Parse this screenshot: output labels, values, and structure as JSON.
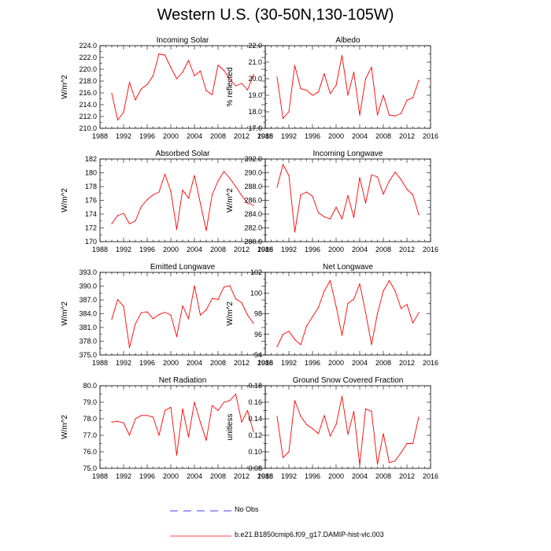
{
  "figure": {
    "title": "Western U.S. (30-50N,130-105W)",
    "line_color": "#ff0000",
    "obs_color": "#0000ff"
  },
  "legend": [
    {
      "label": "No Obs",
      "style": "dashed",
      "color": "#0000ff"
    },
    {
      "label": "b.e21.B1850cmip6.f09_g17.DAMIP-hist-vlc.003",
      "style": "solid",
      "color": "#ff0000"
    }
  ],
  "chart_data": [
    {
      "type": "line",
      "title": "Incoming Solar",
      "ylabel": "W/m^2",
      "xlim": [
        1988,
        2016
      ],
      "xticks": [
        1988,
        1992,
        1996,
        2000,
        2004,
        2008,
        2012,
        2016
      ],
      "ylim": [
        210,
        224
      ],
      "yticks": [
        "210.0",
        "212.0",
        "214.0",
        "216.0",
        "218.0",
        "220.0",
        "222.0",
        "224.0"
      ],
      "x": [
        1990,
        1991,
        1992,
        1993,
        1994,
        1995,
        1996,
        1997,
        1998,
        1999,
        2000,
        2001,
        2002,
        2003,
        2004,
        2005,
        2006,
        2007,
        2008,
        2009,
        2010,
        2011,
        2012,
        2013,
        2014
      ],
      "series": [
        {
          "name": "b.e21.B1850cmip6.f09_g17.DAMIP-hist-vlc.003",
          "values": [
            215.9,
            211.4,
            212.7,
            217.8,
            214.8,
            216.7,
            217.4,
            218.9,
            222.6,
            222.4,
            220.3,
            218.4,
            219.5,
            221.5,
            218.9,
            219.7,
            216.4,
            215.7,
            220.7,
            219.8,
            218.3,
            217.2,
            217.6,
            216.5,
            219.1
          ]
        }
      ]
    },
    {
      "type": "line",
      "title": "Albedo",
      "ylabel": "% reflected",
      "xlim": [
        1988,
        2016
      ],
      "xticks": [
        1988,
        1992,
        1996,
        2000,
        2004,
        2008,
        2012,
        2016
      ],
      "ylim": [
        17,
        22
      ],
      "yticks": [
        "17.0",
        "18.0",
        "19.0",
        "20.0",
        "21.0",
        "22.0"
      ],
      "x": [
        1990,
        1991,
        1992,
        1993,
        1994,
        1995,
        1996,
        1997,
        1998,
        1999,
        2000,
        2001,
        2002,
        2003,
        2004,
        2005,
        2006,
        2007,
        2008,
        2009,
        2010,
        2011,
        2012,
        2013,
        2014
      ],
      "series": [
        {
          "name": "b.e21.B1850cmip6.f09_g17.DAMIP-hist-vlc.003",
          "values": [
            20.1,
            17.6,
            18.0,
            20.8,
            19.4,
            19.3,
            19.0,
            19.2,
            20.3,
            19.1,
            19.6,
            21.4,
            19.0,
            20.4,
            17.8,
            20.0,
            20.7,
            17.8,
            19.0,
            17.8,
            17.75,
            17.9,
            18.7,
            18.85,
            19.9
          ]
        }
      ]
    },
    {
      "type": "line",
      "title": "Absorbed Solar",
      "ylabel": "W/m^2",
      "xlim": [
        1988,
        2016
      ],
      "xticks": [
        1988,
        1992,
        1996,
        2000,
        2004,
        2008,
        2012,
        2016
      ],
      "ylim": [
        170,
        182
      ],
      "yticks": [
        "170",
        "172",
        "174",
        "176",
        "178",
        "180",
        "182"
      ],
      "x": [
        1990,
        1991,
        1992,
        1993,
        1994,
        1995,
        1996,
        1997,
        1998,
        1999,
        2000,
        2001,
        2002,
        2003,
        2004,
        2005,
        2006,
        2007,
        2008,
        2009,
        2010,
        2011,
        2012,
        2013,
        2014
      ],
      "series": [
        {
          "name": "b.e21.B1850cmip6.f09_g17.DAMIP-hist-vlc.003",
          "values": [
            172.6,
            173.8,
            174.1,
            172.6,
            173.0,
            175.1,
            176.1,
            176.8,
            177.2,
            179.8,
            177.3,
            171.8,
            177.5,
            176.3,
            179.6,
            175.6,
            171.6,
            176.8,
            178.8,
            180.2,
            179.2,
            178.0,
            176.7,
            175.6,
            175.3
          ]
        }
      ]
    },
    {
      "type": "line",
      "title": "Incoming Longwave",
      "ylabel": "W/m^2",
      "xlim": [
        1988,
        2016
      ],
      "xticks": [
        1988,
        1992,
        1996,
        2000,
        2004,
        2008,
        2012,
        2016
      ],
      "ylim": [
        280,
        292
      ],
      "yticks": [
        "280.0",
        "282.0",
        "284.0",
        "286.0",
        "288.0",
        "290.0",
        "292.0"
      ],
      "x": [
        1990,
        1991,
        1992,
        1993,
        1994,
        1995,
        1996,
        1997,
        1998,
        1999,
        2000,
        2001,
        2002,
        2003,
        2004,
        2005,
        2006,
        2007,
        2008,
        2009,
        2010,
        2011,
        2012,
        2013,
        2014
      ],
      "series": [
        {
          "name": "b.e21.B1850cmip6.f09_g17.DAMIP-hist-vlc.003",
          "values": [
            287.9,
            291.2,
            289.6,
            281.4,
            286.8,
            287.2,
            286.6,
            284.2,
            283.6,
            283.3,
            285.0,
            283.3,
            286.7,
            283.5,
            289.3,
            285.6,
            289.7,
            289.4,
            286.9,
            288.8,
            290.1,
            289.0,
            287.6,
            286.8,
            283.9
          ]
        }
      ]
    },
    {
      "type": "line",
      "title": "Emitted Longwave",
      "ylabel": "W/m^2",
      "xlim": [
        1988,
        2016
      ],
      "xticks": [
        1988,
        1992,
        1996,
        2000,
        2004,
        2008,
        2012,
        2016
      ],
      "ylim": [
        375,
        393
      ],
      "yticks": [
        "375.0",
        "378.0",
        "381.0",
        "384.0",
        "387.0",
        "390.0",
        "393.0"
      ],
      "x": [
        1990,
        1991,
        1992,
        1993,
        1994,
        1995,
        1996,
        1997,
        1998,
        1999,
        2000,
        2001,
        2002,
        2003,
        2004,
        2005,
        2006,
        2007,
        2008,
        2009,
        2010,
        2011,
        2012,
        2013,
        2014
      ],
      "series": [
        {
          "name": "b.e21.B1850cmip6.f09_g17.DAMIP-hist-vlc.003",
          "values": [
            382.8,
            387.1,
            385.6,
            376.6,
            381.8,
            384.2,
            384.4,
            382.9,
            383.8,
            384.3,
            383.7,
            379.0,
            385.7,
            382.9,
            390.1,
            383.7,
            384.8,
            387.3,
            387.1,
            389.8,
            390.1,
            387.2,
            386.4,
            383.7,
            381.9
          ]
        }
      ]
    },
    {
      "type": "line",
      "title": "Net Longwave",
      "ylabel": "W/m^2",
      "xlim": [
        1988,
        2016
      ],
      "xticks": [
        1988,
        1992,
        1996,
        2000,
        2004,
        2008,
        2012,
        2016
      ],
      "ylim": [
        94,
        102
      ],
      "yticks": [
        "94",
        "96",
        "98",
        "100",
        "102"
      ],
      "x": [
        1990,
        1991,
        1992,
        1993,
        1994,
        1995,
        1996,
        1997,
        1998,
        1999,
        2000,
        2001,
        2002,
        2003,
        2004,
        2005,
        2006,
        2007,
        2008,
        2009,
        2010,
        2011,
        2012,
        2013,
        2014
      ],
      "series": [
        {
          "name": "b.e21.B1850cmip6.f09_g17.DAMIP-hist-vlc.003",
          "values": [
            94.8,
            96.0,
            96.3,
            95.5,
            95.0,
            96.8,
            97.7,
            98.6,
            100.2,
            101.2,
            98.7,
            95.9,
            99.0,
            99.4,
            100.9,
            98.1,
            95.0,
            98.0,
            100.2,
            101.2,
            100.2,
            98.5,
            98.9,
            97.1,
            98.1
          ]
        }
      ]
    },
    {
      "type": "line",
      "title": "Net Radiation",
      "ylabel": "W/m^2",
      "xlim": [
        1988,
        2016
      ],
      "xticks": [
        1988,
        1992,
        1996,
        2000,
        2004,
        2008,
        2012,
        2016
      ],
      "ylim": [
        75,
        80
      ],
      "yticks": [
        "75.0",
        "76.0",
        "77.0",
        "78.0",
        "79.0",
        "80.0"
      ],
      "x": [
        1990,
        1991,
        1992,
        1993,
        1994,
        1995,
        1996,
        1997,
        1998,
        1999,
        2000,
        2001,
        2002,
        2003,
        2004,
        2005,
        2006,
        2007,
        2008,
        2009,
        2010,
        2011,
        2012,
        2013,
        2014
      ],
      "series": [
        {
          "name": "b.e21.B1850cmip6.f09_g17.DAMIP-hist-vlc.003",
          "values": [
            77.8,
            77.85,
            77.75,
            77.0,
            78.0,
            78.2,
            78.2,
            78.1,
            77.0,
            78.5,
            78.7,
            75.8,
            78.6,
            76.9,
            79.0,
            77.8,
            76.7,
            78.8,
            78.5,
            79.0,
            79.1,
            79.5,
            77.8,
            78.5,
            77.2
          ]
        }
      ]
    },
    {
      "type": "line",
      "title": "Ground Snow Covered Fraction",
      "ylabel": "unitless",
      "xlim": [
        1988,
        2016
      ],
      "xticks": [
        1988,
        1992,
        1996,
        2000,
        2004,
        2008,
        2012,
        2016
      ],
      "ylim": [
        0.08,
        0.18
      ],
      "yticks": [
        "0.08",
        "0.10",
        "0.12",
        "0.14",
        "0.16",
        "0.18"
      ],
      "x": [
        1990,
        1991,
        1992,
        1993,
        1994,
        1995,
        1996,
        1997,
        1998,
        1999,
        2000,
        2001,
        2002,
        2003,
        2004,
        2005,
        2006,
        2007,
        2008,
        2009,
        2010,
        2011,
        2012,
        2013,
        2014
      ],
      "series": [
        {
          "name": "b.e21.B1850cmip6.f09_g17.DAMIP-hist-vlc.003",
          "values": [
            0.143,
            0.093,
            0.1,
            0.162,
            0.143,
            0.133,
            0.128,
            0.122,
            0.144,
            0.119,
            0.133,
            0.167,
            0.121,
            0.149,
            0.084,
            0.152,
            0.149,
            0.085,
            0.122,
            0.087,
            0.089,
            0.099,
            0.11,
            0.11,
            0.142
          ]
        }
      ]
    }
  ]
}
